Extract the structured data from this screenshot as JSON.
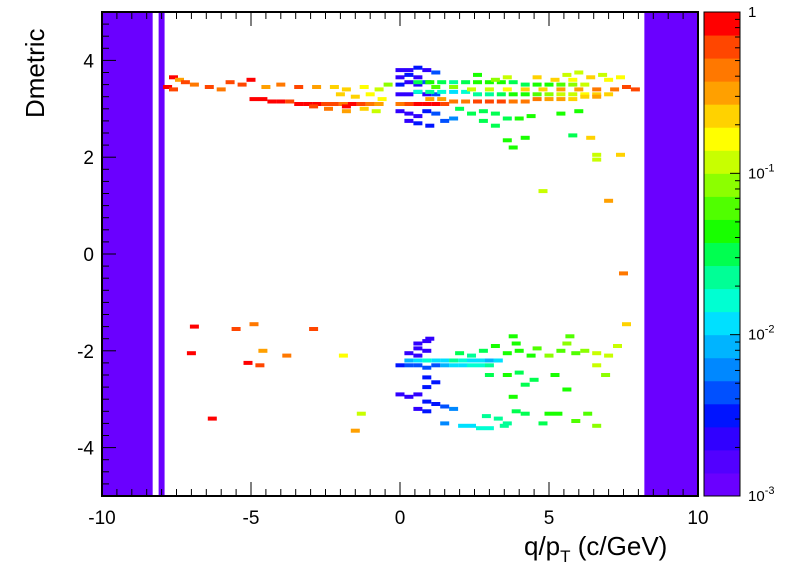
{
  "chart_data": {
    "type": "heatmap",
    "xlabel_main": "q/p",
    "xlabel_sub": "T",
    "xlabel_unit": " (c/GeV)",
    "ylabel": "Dmetric",
    "xlim": [
      -10,
      10
    ],
    "ylim": [
      -5,
      5
    ],
    "x_ticks": [
      -10,
      -5,
      0,
      5,
      10
    ],
    "x_tick_labels": [
      "-10",
      "-5",
      "0",
      "5",
      "10"
    ],
    "y_ticks": [
      -4,
      -2,
      0,
      2,
      4
    ],
    "y_tick_labels": [
      "-4",
      "-2",
      "0",
      "2",
      "4"
    ],
    "z_scale": "log",
    "z_range": [
      0.001,
      1
    ],
    "z_tick_labels": [
      {
        "base": "10",
        "exp": "-3",
        "value": 0.001
      },
      {
        "base": "10",
        "exp": "-2",
        "value": 0.01
      },
      {
        "base": "10",
        "exp": "-1",
        "value": 0.1
      },
      {
        "base": "1",
        "exp": "",
        "value": 1
      }
    ],
    "palette": [
      "#6a00ff",
      "#5200ff",
      "#3000ff",
      "#0014ff",
      "#0050ff",
      "#0088ff",
      "#00b4ff",
      "#00e0ff",
      "#00ffd2",
      "#00ff96",
      "#00ff50",
      "#18ff00",
      "#50ff00",
      "#8cff00",
      "#c8ff00",
      "#ffff00",
      "#ffd200",
      "#ffa000",
      "#ff7800",
      "#ff4600",
      "#ff0000"
    ],
    "bands": [
      {
        "x": [
          -10,
          -8.3
        ],
        "y": [
          -5,
          5
        ],
        "z": 0.001
      },
      {
        "x": [
          -8.1,
          -7.9
        ],
        "y": [
          -5,
          5
        ],
        "z": 0.001
      },
      {
        "x": [
          8.2,
          10
        ],
        "y": [
          -5,
          5
        ],
        "z": 0.001
      }
    ],
    "cells": [
      [
        -7.6,
        3.65,
        1
      ],
      [
        -7.4,
        3.6,
        0.35
      ],
      [
        -7.2,
        3.55,
        0.6
      ],
      [
        -7.8,
        3.45,
        1
      ],
      [
        -7.6,
        3.4,
        0.7
      ],
      [
        -6.9,
        3.5,
        0.4
      ],
      [
        -6.4,
        3.45,
        0.6
      ],
      [
        -6.0,
        3.4,
        0.5
      ],
      [
        -5.7,
        3.55,
        0.7
      ],
      [
        -5.3,
        3.5,
        0.6
      ],
      [
        -5.0,
        3.6,
        0.8
      ],
      [
        -4.5,
        3.45,
        0.3
      ],
      [
        -4.0,
        3.5,
        0.4
      ],
      [
        -3.4,
        3.45,
        0.7
      ],
      [
        -2.8,
        3.45,
        0.35
      ],
      [
        -2.2,
        3.45,
        0.25
      ],
      [
        -1.8,
        3.4,
        0.2
      ],
      [
        -1.2,
        3.45,
        0.15
      ],
      [
        -0.7,
        3.4,
        0.12
      ],
      [
        -0.4,
        3.5,
        0.08
      ],
      [
        -4.9,
        3.2,
        1
      ],
      [
        -4.6,
        3.2,
        0.8
      ],
      [
        -4.3,
        3.15,
        0.9
      ],
      [
        -4.0,
        3.15,
        1
      ],
      [
        -3.7,
        3.15,
        0.7
      ],
      [
        -3.4,
        3.1,
        0.9
      ],
      [
        -3.1,
        3.1,
        1
      ],
      [
        -2.8,
        3.1,
        0.8
      ],
      [
        -2.5,
        3.1,
        0.7
      ],
      [
        -2.2,
        3.1,
        0.6
      ],
      [
        -1.9,
        3.1,
        0.5
      ],
      [
        -1.6,
        3.1,
        0.8
      ],
      [
        -1.3,
        3.1,
        0.6
      ],
      [
        -1.0,
        3.1,
        0.4
      ],
      [
        -0.7,
        3.1,
        0.3
      ],
      [
        -2.0,
        3.3,
        0.25
      ],
      [
        -1.5,
        3.25,
        0.2
      ],
      [
        -1.0,
        3.3,
        0.18
      ],
      [
        -0.6,
        3.2,
        0.15
      ],
      [
        -2.9,
        3.05,
        0.6
      ],
      [
        -2.4,
        3.0,
        0.5
      ],
      [
        -1.8,
        2.95,
        0.3
      ],
      [
        -1.2,
        3.0,
        0.2
      ],
      [
        -0.8,
        2.95,
        0.12
      ],
      [
        -1.8,
        3.05,
        0.9
      ],
      [
        0.0,
        3.8,
        0.002
      ],
      [
        0.3,
        3.8,
        0.002
      ],
      [
        0.6,
        3.85,
        0.003
      ],
      [
        0.9,
        3.8,
        0.002
      ],
      [
        1.2,
        3.75,
        0.004
      ],
      [
        0.0,
        3.65,
        0.002
      ],
      [
        0.3,
        3.7,
        0.003
      ],
      [
        0.6,
        3.65,
        0.002
      ],
      [
        0.0,
        3.5,
        0.003
      ],
      [
        0.3,
        3.55,
        0.002
      ],
      [
        0.6,
        3.5,
        0.002
      ],
      [
        0.9,
        3.55,
        0.004
      ],
      [
        0.0,
        3.3,
        0.002
      ],
      [
        0.3,
        3.3,
        0.002
      ],
      [
        0.6,
        3.35,
        0.003
      ],
      [
        0.9,
        3.3,
        0.002
      ],
      [
        1.2,
        3.3,
        0.004
      ],
      [
        0.0,
        2.95,
        0.002
      ],
      [
        0.3,
        2.9,
        0.002
      ],
      [
        0.6,
        2.85,
        0.002
      ],
      [
        0.9,
        2.95,
        0.003
      ],
      [
        1.2,
        2.9,
        0.004
      ],
      [
        0.3,
        2.75,
        0.002
      ],
      [
        0.6,
        2.7,
        0.003
      ],
      [
        1.0,
        2.65,
        0.003
      ],
      [
        1.5,
        2.75,
        0.004
      ],
      [
        1.8,
        2.8,
        0.006
      ],
      [
        0.6,
        3.55,
        0.03
      ],
      [
        1.0,
        3.55,
        0.04
      ],
      [
        1.4,
        3.55,
        0.03
      ],
      [
        1.8,
        3.55,
        0.025
      ],
      [
        2.2,
        3.55,
        0.03
      ],
      [
        2.6,
        3.55,
        0.04
      ],
      [
        3.0,
        3.55,
        0.05
      ],
      [
        3.4,
        3.55,
        0.04
      ],
      [
        3.8,
        3.55,
        0.03
      ],
      [
        4.2,
        3.5,
        0.03
      ],
      [
        4.6,
        3.5,
        0.04
      ],
      [
        5.0,
        3.5,
        0.05
      ],
      [
        5.4,
        3.5,
        0.06
      ],
      [
        5.8,
        3.5,
        0.08
      ],
      [
        6.2,
        3.5,
        0.1
      ],
      [
        0.6,
        3.35,
        0.015
      ],
      [
        1.0,
        3.35,
        0.02
      ],
      [
        1.4,
        3.35,
        0.015
      ],
      [
        1.8,
        3.35,
        0.012
      ],
      [
        2.2,
        3.35,
        0.015
      ],
      [
        2.6,
        3.3,
        0.02
      ],
      [
        3.0,
        3.3,
        0.025
      ],
      [
        3.4,
        3.3,
        0.03
      ],
      [
        3.8,
        3.3,
        0.04
      ],
      [
        4.2,
        3.3,
        0.05
      ],
      [
        4.6,
        3.3,
        0.06
      ],
      [
        5.0,
        3.3,
        0.08
      ],
      [
        5.4,
        3.3,
        0.1
      ],
      [
        5.8,
        3.3,
        0.12
      ],
      [
        6.2,
        3.3,
        0.15
      ],
      [
        6.6,
        3.3,
        0.2
      ],
      [
        7.0,
        3.3,
        0.25
      ],
      [
        1.0,
        3.2,
        0.3
      ],
      [
        1.4,
        3.2,
        0.35
      ],
      [
        1.8,
        3.15,
        0.4
      ],
      [
        2.2,
        3.15,
        0.5
      ],
      [
        2.6,
        3.15,
        0.6
      ],
      [
        3.0,
        3.15,
        0.7
      ],
      [
        3.4,
        3.15,
        0.6
      ],
      [
        3.8,
        3.15,
        0.5
      ],
      [
        4.2,
        3.15,
        0.45
      ],
      [
        4.6,
        3.2,
        0.4
      ],
      [
        5.0,
        3.2,
        0.35
      ],
      [
        5.4,
        3.2,
        0.3
      ],
      [
        5.8,
        3.2,
        0.25
      ],
      [
        6.2,
        3.25,
        0.25
      ],
      [
        6.6,
        3.25,
        0.3
      ],
      [
        0.3,
        3.1,
        0.6
      ],
      [
        0.6,
        3.1,
        0.8
      ],
      [
        0.9,
        3.1,
        1
      ],
      [
        1.2,
        3.1,
        0.9
      ],
      [
        1.5,
        3.1,
        0.7
      ],
      [
        0.0,
        3.1,
        0.5
      ],
      [
        1.2,
        3.45,
        0.06
      ],
      [
        1.8,
        3.45,
        0.08
      ],
      [
        2.4,
        3.4,
        0.1
      ],
      [
        3.0,
        3.4,
        0.12
      ],
      [
        3.6,
        3.4,
        0.15
      ],
      [
        4.2,
        3.4,
        0.2
      ],
      [
        4.8,
        3.4,
        0.25
      ],
      [
        5.4,
        3.4,
        0.3
      ],
      [
        6.0,
        3.4,
        0.35
      ],
      [
        6.6,
        3.4,
        0.4
      ],
      [
        7.2,
        3.4,
        0.5
      ],
      [
        7.6,
        3.45,
        0.7
      ],
      [
        7.9,
        3.4,
        0.6
      ],
      [
        4.6,
        3.65,
        0.25
      ],
      [
        5.2,
        3.6,
        0.2
      ],
      [
        5.8,
        3.6,
        0.18
      ],
      [
        6.4,
        3.65,
        0.2
      ],
      [
        7.0,
        3.6,
        0.18
      ],
      [
        7.4,
        3.65,
        0.15
      ],
      [
        3.6,
        3.65,
        0.12
      ],
      [
        2.6,
        3.7,
        0.05
      ],
      [
        3.2,
        3.6,
        0.08
      ],
      [
        5.6,
        3.7,
        0.12
      ],
      [
        6.0,
        3.75,
        0.1
      ],
      [
        6.8,
        3.7,
        0.12
      ],
      [
        2.0,
        3.0,
        0.03
      ],
      [
        2.4,
        2.9,
        0.035
      ],
      [
        2.8,
        2.95,
        0.03
      ],
      [
        3.2,
        2.9,
        0.028
      ],
      [
        3.6,
        2.8,
        0.035
      ],
      [
        4.0,
        2.8,
        0.04
      ],
      [
        4.4,
        2.85,
        0.045
      ],
      [
        3.2,
        2.65,
        0.03
      ],
      [
        2.8,
        2.75,
        0.03
      ],
      [
        5.4,
        2.9,
        0.05
      ],
      [
        6.0,
        2.95,
        0.04
      ],
      [
        3.6,
        2.35,
        0.04
      ],
      [
        3.8,
        2.2,
        0.04
      ],
      [
        4.2,
        2.4,
        0.04
      ],
      [
        5.8,
        2.45,
        0.035
      ],
      [
        6.6,
        2.05,
        0.12
      ],
      [
        6.6,
        1.95,
        0.1
      ],
      [
        7.4,
        2.05,
        0.2
      ],
      [
        6.4,
        2.4,
        0.25
      ],
      [
        4.8,
        1.3,
        0.12
      ],
      [
        7.0,
        1.1,
        0.3
      ],
      [
        7.5,
        -0.4,
        0.5
      ],
      [
        -6.9,
        -1.5,
        0.9
      ],
      [
        -5.5,
        -1.55,
        0.7
      ],
      [
        -4.9,
        -1.45,
        0.4
      ],
      [
        -2.9,
        -1.55,
        0.6
      ],
      [
        -7.0,
        -2.05,
        1
      ],
      [
        -4.6,
        -2.0,
        0.35
      ],
      [
        -3.8,
        -2.1,
        0.5
      ],
      [
        -5.1,
        -2.25,
        1
      ],
      [
        -4.7,
        -2.3,
        0.6
      ],
      [
        -1.9,
        -2.1,
        0.15
      ],
      [
        -6.3,
        -3.4,
        1
      ],
      [
        -1.3,
        -3.3,
        0.12
      ],
      [
        -1.5,
        -3.65,
        0.3
      ],
      [
        0.6,
        -1.85,
        0.002
      ],
      [
        0.9,
        -1.8,
        0.002
      ],
      [
        1.0,
        -1.75,
        0.002
      ],
      [
        0.6,
        -1.95,
        0.002
      ],
      [
        0.3,
        -2.05,
        0.002
      ],
      [
        0.6,
        -2.1,
        0.002
      ],
      [
        0.9,
        -2.0,
        0.002
      ],
      [
        0.3,
        -2.2,
        0.008
      ],
      [
        0.6,
        -2.2,
        0.01
      ],
      [
        0.9,
        -2.2,
        0.015
      ],
      [
        1.2,
        -2.2,
        0.012
      ],
      [
        1.5,
        -2.2,
        0.01
      ],
      [
        1.8,
        -2.2,
        0.02
      ],
      [
        2.1,
        -2.2,
        0.015
      ],
      [
        2.4,
        -2.2,
        0.012
      ],
      [
        2.7,
        -2.2,
        0.01
      ],
      [
        3.0,
        -2.2,
        0.008
      ],
      [
        3.3,
        -2.2,
        0.01
      ],
      [
        0.0,
        -2.3,
        0.003
      ],
      [
        0.3,
        -2.3,
        0.004
      ],
      [
        0.6,
        -2.3,
        0.005
      ],
      [
        0.9,
        -2.35,
        0.004
      ],
      [
        1.2,
        -2.3,
        0.005
      ],
      [
        1.5,
        -2.3,
        0.008
      ],
      [
        1.8,
        -2.3,
        0.01
      ],
      [
        2.1,
        -2.3,
        0.012
      ],
      [
        2.4,
        -2.3,
        0.015
      ],
      [
        2.7,
        -2.3,
        0.015
      ],
      [
        3.0,
        -2.3,
        0.02
      ],
      [
        2.0,
        -2.05,
        0.03
      ],
      [
        2.4,
        -2.1,
        0.025
      ],
      [
        2.8,
        -2.0,
        0.03
      ],
      [
        3.2,
        -1.9,
        0.04
      ],
      [
        3.6,
        -2.05,
        0.05
      ],
      [
        4.0,
        -2.0,
        0.04
      ],
      [
        4.4,
        -2.1,
        0.05
      ],
      [
        3.9,
        -1.85,
        0.05
      ],
      [
        3.8,
        -1.7,
        0.04
      ],
      [
        4.6,
        -1.95,
        0.06
      ],
      [
        5.0,
        -2.1,
        0.08
      ],
      [
        5.4,
        -2.0,
        0.06
      ],
      [
        5.6,
        -1.85,
        0.08
      ],
      [
        5.9,
        -2.05,
        0.06
      ],
      [
        5.7,
        -1.7,
        0.07
      ],
      [
        6.2,
        -2.0,
        0.08
      ],
      [
        6.6,
        -2.05,
        0.1
      ],
      [
        7.0,
        -2.1,
        0.12
      ],
      [
        7.3,
        -1.9,
        0.1
      ],
      [
        7.6,
        -1.45,
        0.2
      ],
      [
        6.6,
        -2.3,
        0.1
      ],
      [
        6.9,
        -2.5,
        0.08
      ],
      [
        3.0,
        -2.5,
        0.03
      ],
      [
        3.6,
        -2.5,
        0.04
      ],
      [
        4.0,
        -2.45,
        0.035
      ],
      [
        4.5,
        -2.6,
        0.03
      ],
      [
        4.2,
        -2.7,
        0.035
      ],
      [
        3.8,
        -2.95,
        0.04
      ],
      [
        5.6,
        -2.8,
        0.05
      ],
      [
        5.2,
        -2.5,
        0.05
      ],
      [
        0.9,
        -2.55,
        0.003
      ],
      [
        1.2,
        -2.65,
        0.003
      ],
      [
        0.9,
        -2.75,
        0.003
      ],
      [
        0.0,
        -2.9,
        0.002
      ],
      [
        0.3,
        -2.95,
        0.002
      ],
      [
        0.6,
        -2.9,
        0.002
      ],
      [
        0.9,
        -3.05,
        0.003
      ],
      [
        1.2,
        -3.1,
        0.003
      ],
      [
        0.6,
        -3.2,
        0.002
      ],
      [
        0.9,
        -3.25,
        0.003
      ],
      [
        1.5,
        -3.15,
        0.005
      ],
      [
        1.8,
        -3.2,
        0.006
      ],
      [
        1.5,
        -3.5,
        0.006
      ],
      [
        2.1,
        -3.55,
        0.01
      ],
      [
        2.4,
        -3.55,
        0.012
      ],
      [
        2.9,
        -3.35,
        0.02
      ],
      [
        2.7,
        -3.6,
        0.015
      ],
      [
        3.3,
        -3.4,
        0.02
      ],
      [
        3.6,
        -3.5,
        0.025
      ],
      [
        3.9,
        -3.25,
        0.03
      ],
      [
        4.2,
        -3.3,
        0.035
      ],
      [
        5.0,
        -3.3,
        0.05
      ],
      [
        5.3,
        -3.3,
        0.04
      ],
      [
        5.9,
        -3.45,
        0.06
      ],
      [
        6.3,
        -3.3,
        0.07
      ],
      [
        6.6,
        -3.55,
        0.08
      ],
      [
        4.8,
        -3.5,
        0.035
      ],
      [
        3.0,
        -3.6,
        0.015
      ],
      [
        3.5,
        -3.55,
        0.02
      ]
    ]
  }
}
